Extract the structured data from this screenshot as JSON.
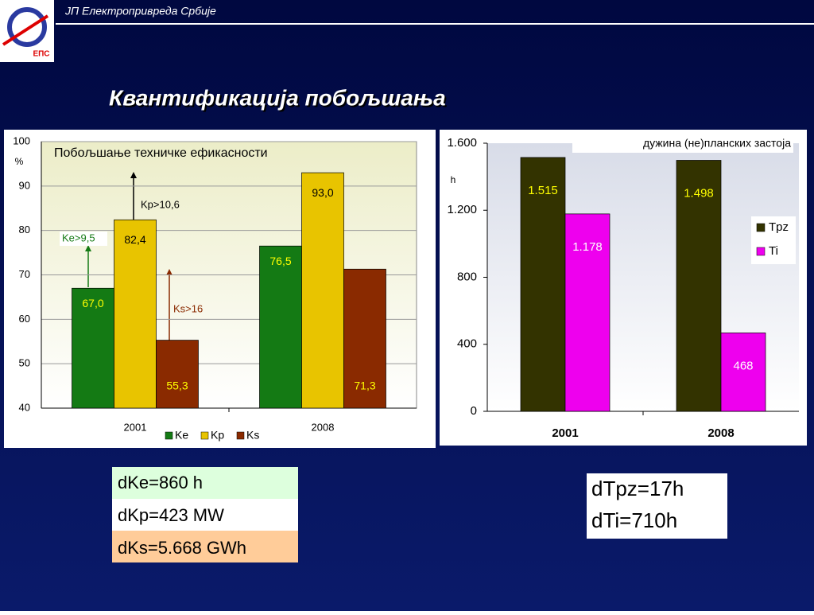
{
  "header": {
    "org": "ЈП Електропривреда Србије",
    "logo_text": "ЕПС"
  },
  "title": "Квантификација побољшања",
  "chart_data": [
    {
      "type": "bar",
      "title": "Побољшање техничке ефикасности",
      "y_label": "%",
      "categories": [
        "2001",
        "2008"
      ],
      "series": [
        {
          "name": "Ke",
          "color": "#147a14",
          "values": [
            67,
            76.5
          ],
          "value_labels": [
            "67,0",
            "76,5"
          ]
        },
        {
          "name": "Kp",
          "color": "#e8c400",
          "values": [
            82.4,
            93
          ],
          "value_labels": [
            "82,4",
            "93,0"
          ]
        },
        {
          "name": "Ks",
          "color": "#8a2a00",
          "values": [
            55.3,
            71.3
          ],
          "value_labels": [
            "55,3",
            "71,3"
          ]
        }
      ],
      "ylim": [
        40,
        100
      ],
      "yticks": [
        40,
        50,
        60,
        70,
        80,
        90,
        100
      ],
      "grid": true,
      "legend": "bottom",
      "annotations": [
        "Ke>9,5",
        "Kp>10,6",
        "Ks>16"
      ]
    },
    {
      "type": "bar",
      "title": "дужина  (не)планских застоја",
      "y_label": "h",
      "categories": [
        "2001",
        "2008"
      ],
      "series": [
        {
          "name": "Tpz",
          "color": "#333300",
          "values": [
            1515,
            1498
          ],
          "value_labels": [
            "1.515",
            "1.498"
          ]
        },
        {
          "name": "Ti",
          "color": "#ee00ee",
          "values": [
            1178,
            468
          ],
          "value_labels": [
            "1.178",
            "468"
          ]
        }
      ],
      "ylim": [
        0,
        1600
      ],
      "yticks": [
        0,
        400,
        800,
        {
          "value": 1200,
          "label": "1.200"
        },
        {
          "value": 1600,
          "label": "1.600"
        }
      ],
      "grid": false,
      "legend": "right"
    }
  ],
  "boxes": [
    [
      "dKe=860 h",
      "dKp=423 MW",
      "dKs=5.668 GWh"
    ],
    [
      "dTpz=17h",
      "dTi=710h"
    ]
  ]
}
